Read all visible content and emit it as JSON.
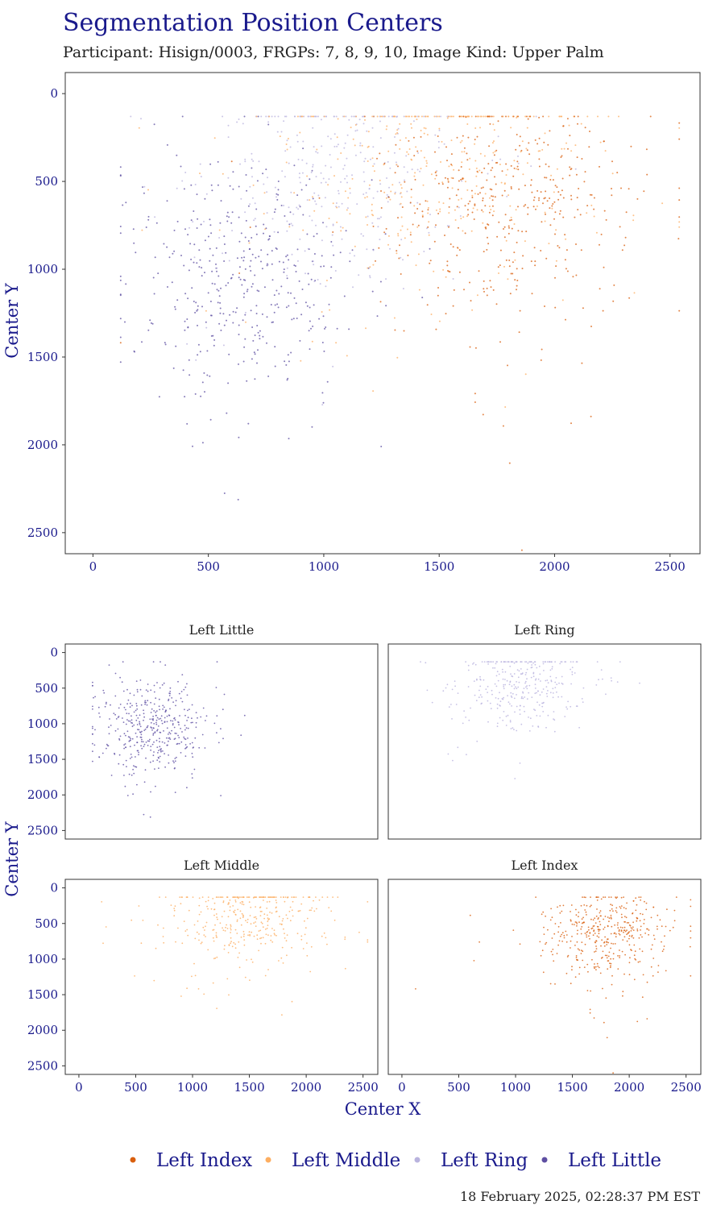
{
  "title": "Segmentation Position Centers",
  "subtitle": "Participant: Hisign/0003, FRGPs: 7, 8, 9, 10, Image Kind: Upper Palm",
  "timestamp": "18 February 2025, 02:28:37 PM EST",
  "colors": {
    "title": "#1a1a8c",
    "axis_text": "#1a1a8c",
    "panel_border": "#333333",
    "Left Index": "#d95f0e",
    "Left Middle": "#fdae61",
    "Left Ring": "#b9b3de",
    "Left Little": "#5e4fa2"
  },
  "chart_data": [
    {
      "type": "scatter",
      "panel": "combined",
      "title": "",
      "xlabel": "",
      "ylabel": "Center Y",
      "xlim": [
        -120,
        2630
      ],
      "ylim": [
        2620,
        -120
      ],
      "x_ticks": [
        0,
        500,
        1000,
        1500,
        2000,
        2500
      ],
      "y_ticks": [
        0,
        500,
        1000,
        1500,
        2000,
        2500
      ],
      "grid": false,
      "series": [
        {
          "name": "Left Index",
          "cluster": {
            "cx": 1780,
            "cy": 650,
            "sx": 260,
            "sy": 300,
            "n": 420
          }
        },
        {
          "name": "Left Middle",
          "cluster": {
            "cx": 1480,
            "cy": 420,
            "sx": 330,
            "sy": 330,
            "n": 380
          }
        },
        {
          "name": "Left Ring",
          "cluster": {
            "cx": 1050,
            "cy": 480,
            "sx": 260,
            "sy": 280,
            "n": 330
          }
        },
        {
          "name": "Left Little",
          "cluster": {
            "cx": 640,
            "cy": 1050,
            "sx": 230,
            "sy": 330,
            "n": 420
          }
        }
      ]
    },
    {
      "type": "scatter",
      "panel": "facet",
      "title": "Left Little",
      "series_name": "Left Little",
      "xlim": [
        -120,
        2630
      ],
      "ylim": [
        2620,
        -120
      ],
      "y_ticks": [
        0,
        500,
        1000,
        1500,
        2000,
        2500
      ]
    },
    {
      "type": "scatter",
      "panel": "facet",
      "title": "Left Ring",
      "series_name": "Left Ring",
      "xlim": [
        -120,
        2630
      ],
      "ylim": [
        2620,
        -120
      ]
    },
    {
      "type": "scatter",
      "panel": "facet",
      "title": "Left Middle",
      "series_name": "Left Middle",
      "xlim": [
        -120,
        2630
      ],
      "ylim": [
        2620,
        -120
      ],
      "x_ticks": [
        0,
        500,
        1000,
        1500,
        2000,
        2500
      ],
      "y_ticks": [
        0,
        500,
        1000,
        1500,
        2000,
        2500
      ]
    },
    {
      "type": "scatter",
      "panel": "facet",
      "title": "Left Index",
      "series_name": "Left Index",
      "xlim": [
        -120,
        2630
      ],
      "ylim": [
        2620,
        -120
      ],
      "x_ticks": [
        0,
        500,
        1000,
        1500,
        2000,
        2500
      ]
    }
  ],
  "facet_axis_labels": {
    "x": "Center X",
    "y": "Center Y"
  },
  "legend": {
    "position": "bottom",
    "items": [
      "Left Index",
      "Left Middle",
      "Left Ring",
      "Left Little"
    ]
  }
}
